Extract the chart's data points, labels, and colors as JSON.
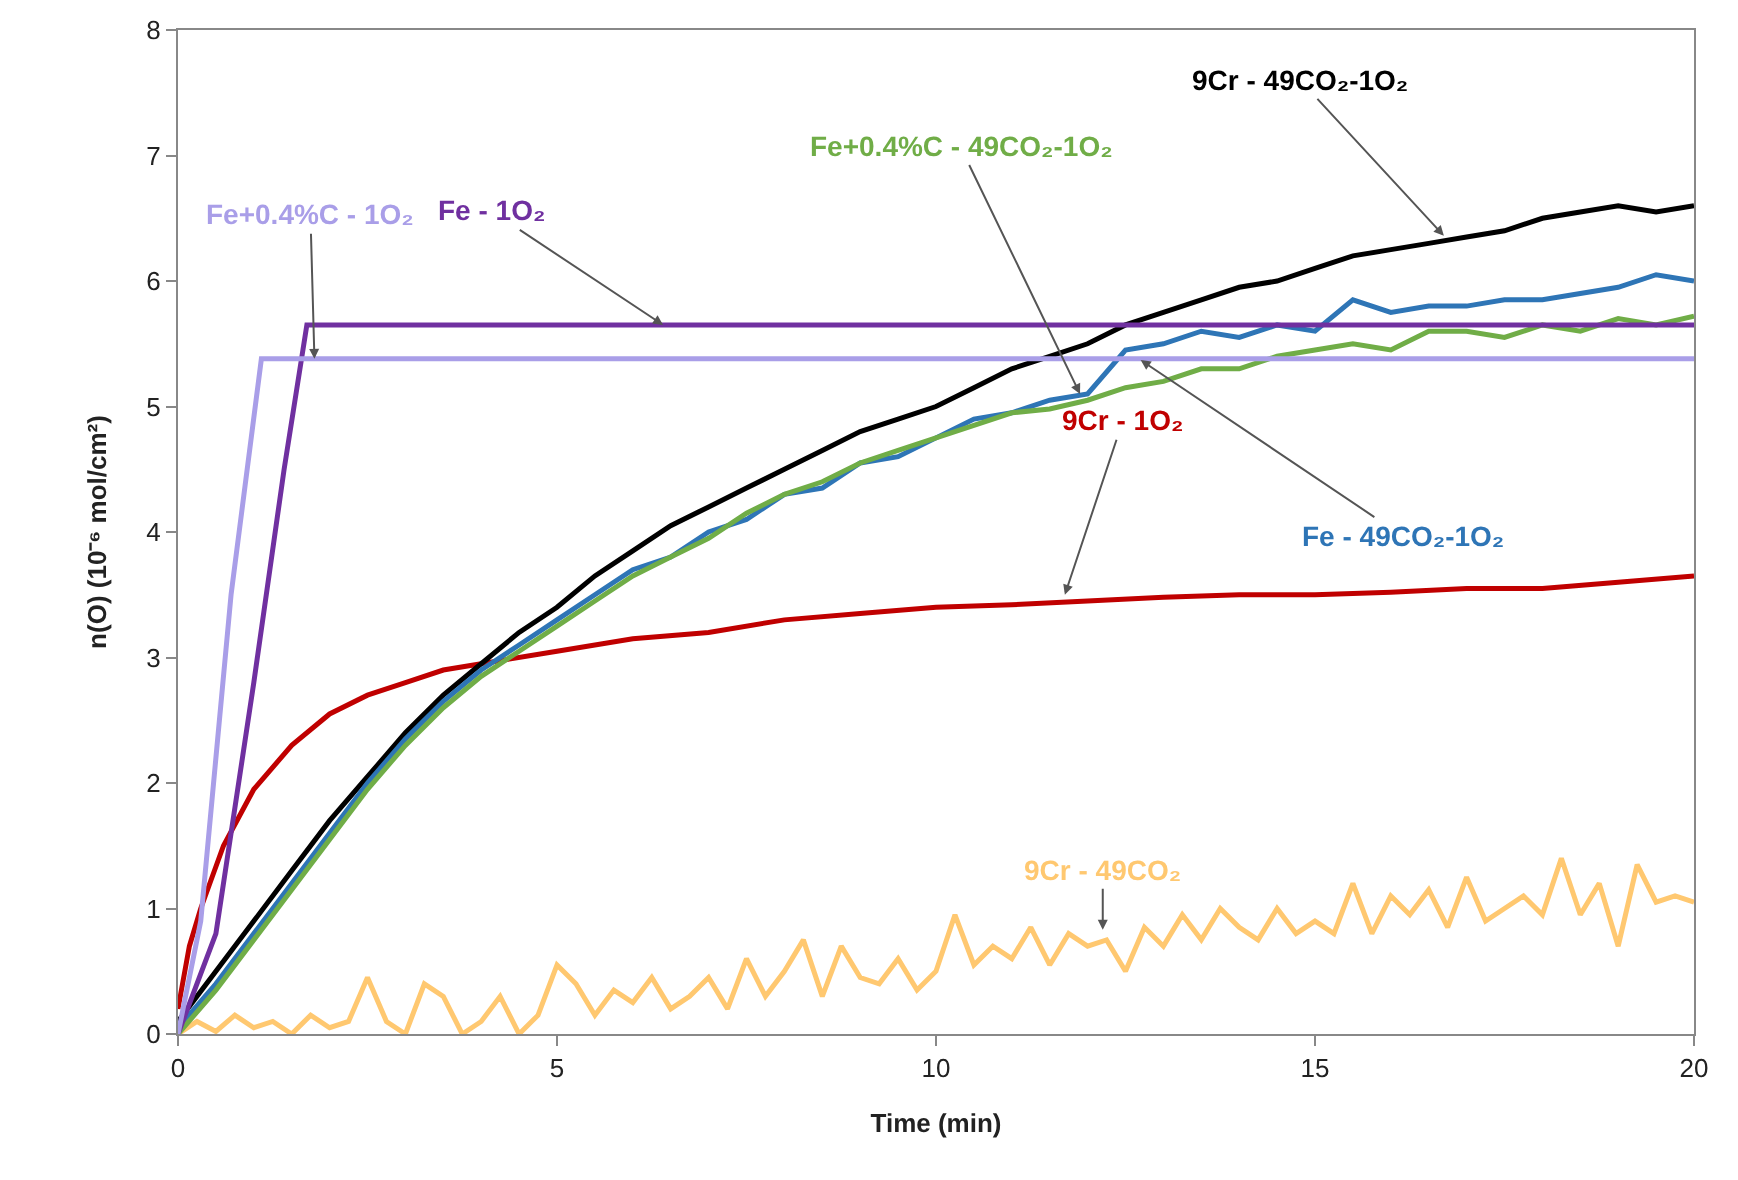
{
  "chart_data": {
    "type": "line",
    "xlabel": "Time (min)",
    "ylabel": "n(O) (10⁻⁶ mol/cm²)",
    "xlim": [
      0,
      20
    ],
    "xticks": [
      0,
      5,
      10,
      15,
      20
    ],
    "ylim": [
      0,
      8
    ],
    "yticks": [
      0,
      1,
      2,
      3,
      4,
      5,
      6,
      7,
      8
    ],
    "grid": false,
    "marker": "none",
    "line_style": "solid",
    "series": [
      {
        "color": "#a99ee8",
        "x": [
          0,
          0.3,
          0.7,
          1.1,
          20
        ],
        "values": [
          0,
          0.9,
          3.5,
          5.38,
          5.38
        ]
      },
      {
        "color": "#7030a0",
        "x": [
          0,
          0.5,
          1.0,
          1.4,
          1.7,
          20
        ],
        "values": [
          0,
          0.8,
          2.8,
          4.5,
          5.65,
          5.65
        ]
      },
      {
        "color": "#70ad47",
        "x": [
          0,
          0.5,
          1,
          1.5,
          2,
          2.5,
          3,
          3.5,
          4,
          4.5,
          5,
          5.5,
          6,
          6.5,
          7,
          7.5,
          8,
          8.5,
          9,
          9.5,
          10,
          10.5,
          11,
          11.5,
          12,
          12.5,
          13,
          13.5,
          14,
          14.5,
          15,
          15.5,
          16,
          16.5,
          17,
          17.5,
          18,
          18.5,
          19,
          19.5,
          20
        ],
        "values": [
          0,
          0.35,
          0.75,
          1.15,
          1.55,
          1.95,
          2.3,
          2.6,
          2.85,
          3.05,
          3.25,
          3.45,
          3.65,
          3.8,
          3.95,
          4.15,
          4.3,
          4.4,
          4.55,
          4.65,
          4.75,
          4.85,
          4.95,
          4.98,
          5.05,
          5.15,
          5.2,
          5.3,
          5.3,
          5.4,
          5.45,
          5.5,
          5.45,
          5.6,
          5.6,
          5.55,
          5.65,
          5.6,
          5.7,
          5.65,
          5.72
        ]
      },
      {
        "color": "#2e75b6",
        "x": [
          0,
          0.5,
          1,
          1.5,
          2,
          2.5,
          3,
          3.5,
          4,
          4.5,
          5,
          5.5,
          6,
          6.5,
          7,
          7.5,
          8,
          8.5,
          9,
          9.5,
          10,
          10.5,
          11,
          11.5,
          12,
          12.5,
          13,
          13.5,
          14,
          14.5,
          15,
          15.5,
          16,
          16.5,
          17,
          17.5,
          18,
          18.5,
          19,
          19.5,
          20
        ],
        "values": [
          0.05,
          0.4,
          0.8,
          1.2,
          1.6,
          2.0,
          2.35,
          2.65,
          2.9,
          3.1,
          3.3,
          3.5,
          3.7,
          3.8,
          4.0,
          4.1,
          4.3,
          4.35,
          4.55,
          4.6,
          4.75,
          4.9,
          4.95,
          5.05,
          5.1,
          5.45,
          5.5,
          5.6,
          5.55,
          5.65,
          5.6,
          5.85,
          5.75,
          5.8,
          5.8,
          5.85,
          5.85,
          5.9,
          5.95,
          6.05,
          6.0
        ]
      },
      {
        "color": "#000000",
        "x": [
          0,
          0.5,
          1,
          1.5,
          2,
          2.5,
          3,
          3.5,
          4,
          4.5,
          5,
          5.5,
          6,
          6.5,
          7,
          7.5,
          8,
          8.5,
          9,
          9.5,
          10,
          10.5,
          11,
          11.5,
          12,
          12.5,
          13,
          13.5,
          14,
          14.5,
          15,
          15.5,
          16,
          16.5,
          17,
          17.5,
          18,
          18.5,
          19,
          19.5,
          20
        ],
        "values": [
          0.1,
          0.5,
          0.9,
          1.3,
          1.7,
          2.05,
          2.4,
          2.7,
          2.95,
          3.2,
          3.4,
          3.65,
          3.85,
          4.05,
          4.2,
          4.35,
          4.5,
          4.65,
          4.8,
          4.9,
          5.0,
          5.15,
          5.3,
          5.4,
          5.5,
          5.65,
          5.75,
          5.85,
          5.95,
          6.0,
          6.1,
          6.2,
          6.25,
          6.3,
          6.35,
          6.4,
          6.5,
          6.55,
          6.6,
          6.55,
          6.6
        ]
      },
      {
        "color": "#c00000",
        "x": [
          0,
          0.15,
          0.3,
          0.6,
          1,
          1.5,
          2,
          2.5,
          3,
          3.5,
          4,
          5,
          6,
          7,
          8,
          9,
          10,
          11,
          12,
          13,
          14,
          15,
          16,
          17,
          18,
          19,
          20
        ],
        "values": [
          0.2,
          0.7,
          1.0,
          1.5,
          1.95,
          2.3,
          2.55,
          2.7,
          2.8,
          2.9,
          2.95,
          3.05,
          3.15,
          3.2,
          3.3,
          3.35,
          3.4,
          3.42,
          3.45,
          3.48,
          3.5,
          3.5,
          3.52,
          3.55,
          3.55,
          3.6,
          3.65
        ]
      },
      {
        "color": "#ffc870",
        "x": [
          0,
          0.25,
          0.5,
          0.75,
          1,
          1.25,
          1.5,
          1.75,
          2,
          2.25,
          2.5,
          2.75,
          3,
          3.25,
          3.5,
          3.75,
          4,
          4.25,
          4.5,
          4.75,
          5,
          5.25,
          5.5,
          5.75,
          6,
          6.25,
          6.5,
          6.75,
          7,
          7.25,
          7.5,
          7.75,
          8,
          8.25,
          8.5,
          8.75,
          9,
          9.25,
          9.5,
          9.75,
          10,
          10.25,
          10.5,
          10.75,
          11,
          11.25,
          11.5,
          11.75,
          12,
          12.25,
          12.5,
          12.75,
          13,
          13.25,
          13.5,
          13.75,
          14,
          14.25,
          14.5,
          14.75,
          15,
          15.25,
          15.5,
          15.75,
          16,
          16.25,
          16.5,
          16.75,
          17,
          17.25,
          17.5,
          17.75,
          18,
          18.25,
          18.5,
          18.75,
          19,
          19.25,
          19.5,
          19.75,
          20
        ],
        "values": [
          0,
          0.1,
          0.02,
          0.15,
          0.05,
          0.1,
          0,
          0.15,
          0.05,
          0.1,
          0.45,
          0.1,
          0,
          0.4,
          0.3,
          0,
          0.1,
          0.3,
          0,
          0.15,
          0.55,
          0.4,
          0.15,
          0.35,
          0.25,
          0.45,
          0.2,
          0.3,
          0.45,
          0.2,
          0.6,
          0.3,
          0.5,
          0.75,
          0.3,
          0.7,
          0.45,
          0.4,
          0.6,
          0.35,
          0.5,
          0.95,
          0.55,
          0.7,
          0.6,
          0.85,
          0.55,
          0.8,
          0.7,
          0.75,
          0.5,
          0.85,
          0.7,
          0.95,
          0.75,
          1.0,
          0.85,
          0.75,
          1.0,
          0.8,
          0.9,
          0.8,
          1.2,
          0.8,
          1.1,
          0.95,
          1.15,
          0.85,
          1.25,
          0.9,
          1.0,
          1.1,
          0.95,
          1.4,
          0.95,
          1.2,
          0.7,
          1.35,
          1.05,
          1.1,
          1.05
        ]
      }
    ],
    "annotations": [
      {
        "text": "Fe+0.4%C - 1O₂",
        "x": 1.8,
        "y": 5.38
      },
      {
        "text": "Fe - 1O₂",
        "x": 6.4,
        "y": 5.65
      },
      {
        "text": "Fe+0.4%C - 49CO₂-1O₂",
        "x": 11.9,
        "y": 5.1
      },
      {
        "text": "Fe - 49CO₂-1O₂",
        "x": 12.7,
        "y": 5.37
      },
      {
        "text": "9Cr - 49CO₂-1O₂",
        "x": 16.7,
        "y": 6.36
      },
      {
        "text": "9Cr - 1O₂",
        "x": 11.7,
        "y": 3.5
      },
      {
        "text": "9Cr - 49CO₂",
        "x": 12.2,
        "y": 0.83
      }
    ]
  }
}
